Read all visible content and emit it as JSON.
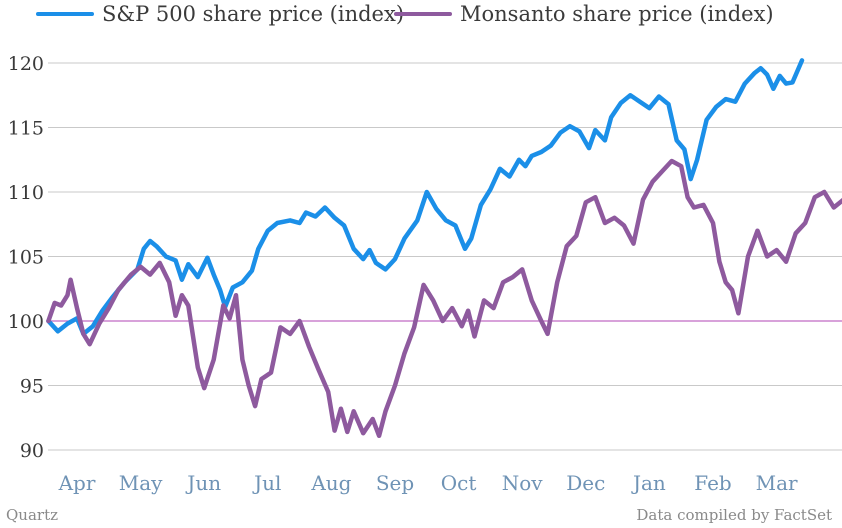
{
  "chart_data": {
    "type": "line",
    "title": "",
    "xlabel": "",
    "ylabel": "",
    "x_categories": [
      "Apr",
      "May",
      "Jun",
      "Jul",
      "Aug",
      "Sep",
      "Oct",
      "Nov",
      "Dec",
      "Jan",
      "Feb",
      "Mar"
    ],
    "yticks": [
      90,
      95,
      100,
      105,
      110,
      115,
      120
    ],
    "ylim": [
      89.5,
      121.5
    ],
    "reference_line": 100,
    "grid": true,
    "legend_position": "top",
    "series": [
      {
        "name": "S&P 500 share price (index)",
        "color": "#1b8fe8",
        "points": [
          [
            0.0,
            100.0
          ],
          [
            0.15,
            99.2
          ],
          [
            0.3,
            99.8
          ],
          [
            0.45,
            100.2
          ],
          [
            0.55,
            99.0
          ],
          [
            0.7,
            99.6
          ],
          [
            0.85,
            100.8
          ],
          [
            1.0,
            101.8
          ],
          [
            1.2,
            103.0
          ],
          [
            1.4,
            104.0
          ],
          [
            1.5,
            105.6
          ],
          [
            1.6,
            106.2
          ],
          [
            1.7,
            105.8
          ],
          [
            1.85,
            105.0
          ],
          [
            2.0,
            104.7
          ],
          [
            2.1,
            103.2
          ],
          [
            2.2,
            104.4
          ],
          [
            2.35,
            103.4
          ],
          [
            2.5,
            104.9
          ],
          [
            2.6,
            103.6
          ],
          [
            2.7,
            102.4
          ],
          [
            2.78,
            101.1
          ],
          [
            2.9,
            102.6
          ],
          [
            3.05,
            103.0
          ],
          [
            3.2,
            103.9
          ],
          [
            3.3,
            105.6
          ],
          [
            3.45,
            107.0
          ],
          [
            3.6,
            107.6
          ],
          [
            3.8,
            107.8
          ],
          [
            3.95,
            107.6
          ],
          [
            4.05,
            108.4
          ],
          [
            4.2,
            108.1
          ],
          [
            4.35,
            108.8
          ],
          [
            4.5,
            108.0
          ],
          [
            4.65,
            107.4
          ],
          [
            4.8,
            105.6
          ],
          [
            4.95,
            104.8
          ],
          [
            5.05,
            105.5
          ],
          [
            5.15,
            104.5
          ],
          [
            5.3,
            104.0
          ],
          [
            5.45,
            104.8
          ],
          [
            5.6,
            106.4
          ],
          [
            5.8,
            107.8
          ],
          [
            5.95,
            110.0
          ],
          [
            6.1,
            108.7
          ],
          [
            6.25,
            107.8
          ],
          [
            6.4,
            107.4
          ],
          [
            6.55,
            105.6
          ],
          [
            6.65,
            106.4
          ],
          [
            6.8,
            109.0
          ],
          [
            6.95,
            110.2
          ],
          [
            7.1,
            111.8
          ],
          [
            7.25,
            111.2
          ],
          [
            7.4,
            112.5
          ],
          [
            7.5,
            112.0
          ],
          [
            7.6,
            112.8
          ],
          [
            7.75,
            113.1
          ],
          [
            7.9,
            113.6
          ],
          [
            8.05,
            114.6
          ],
          [
            8.2,
            115.1
          ],
          [
            8.35,
            114.7
          ],
          [
            8.5,
            113.4
          ],
          [
            8.6,
            114.8
          ],
          [
            8.75,
            114.0
          ],
          [
            8.85,
            115.8
          ],
          [
            9.0,
            116.9
          ],
          [
            9.15,
            117.5
          ],
          [
            9.3,
            117.0
          ],
          [
            9.45,
            116.5
          ],
          [
            9.6,
            117.4
          ],
          [
            9.75,
            116.8
          ],
          [
            9.88,
            114.0
          ],
          [
            10.0,
            113.3
          ],
          [
            10.1,
            111.0
          ],
          [
            10.2,
            112.5
          ],
          [
            10.35,
            115.6
          ],
          [
            10.5,
            116.6
          ],
          [
            10.65,
            117.2
          ],
          [
            10.8,
            117.0
          ],
          [
            10.95,
            118.4
          ],
          [
            11.1,
            119.2
          ],
          [
            11.2,
            119.6
          ],
          [
            11.3,
            119.1
          ],
          [
            11.4,
            118.0
          ],
          [
            11.5,
            119.0
          ],
          [
            11.6,
            118.4
          ],
          [
            11.7,
            118.5
          ],
          [
            11.85,
            120.2
          ]
        ]
      },
      {
        "name": "Monsanto share price (index)",
        "color": "#8e5a9e",
        "points": [
          [
            0.0,
            100.0
          ],
          [
            0.1,
            101.4
          ],
          [
            0.2,
            101.2
          ],
          [
            0.3,
            102.0
          ],
          [
            0.35,
            103.2
          ],
          [
            0.45,
            101.0
          ],
          [
            0.55,
            99.0
          ],
          [
            0.65,
            98.2
          ],
          [
            0.8,
            99.8
          ],
          [
            0.95,
            101.0
          ],
          [
            1.1,
            102.4
          ],
          [
            1.3,
            103.6
          ],
          [
            1.45,
            104.2
          ],
          [
            1.6,
            103.6
          ],
          [
            1.75,
            104.5
          ],
          [
            1.9,
            103.0
          ],
          [
            2.0,
            100.4
          ],
          [
            2.1,
            102.0
          ],
          [
            2.2,
            101.2
          ],
          [
            2.35,
            96.4
          ],
          [
            2.45,
            94.8
          ],
          [
            2.6,
            97.0
          ],
          [
            2.75,
            101.2
          ],
          [
            2.85,
            100.2
          ],
          [
            2.95,
            102.0
          ],
          [
            3.05,
            97.0
          ],
          [
            3.15,
            95.0
          ],
          [
            3.25,
            93.4
          ],
          [
            3.35,
            95.5
          ],
          [
            3.5,
            96.0
          ],
          [
            3.65,
            99.5
          ],
          [
            3.8,
            99.0
          ],
          [
            3.95,
            100.0
          ],
          [
            4.1,
            98.0
          ],
          [
            4.25,
            96.2
          ],
          [
            4.4,
            94.5
          ],
          [
            4.5,
            91.5
          ],
          [
            4.6,
            93.2
          ],
          [
            4.7,
            91.4
          ],
          [
            4.8,
            93.0
          ],
          [
            4.95,
            91.3
          ],
          [
            5.1,
            92.4
          ],
          [
            5.2,
            91.1
          ],
          [
            5.3,
            93.0
          ],
          [
            5.45,
            95.0
          ],
          [
            5.6,
            97.5
          ],
          [
            5.75,
            99.5
          ],
          [
            5.9,
            102.8
          ],
          [
            6.05,
            101.6
          ],
          [
            6.2,
            100.0
          ],
          [
            6.35,
            101.0
          ],
          [
            6.5,
            99.6
          ],
          [
            6.6,
            100.8
          ],
          [
            6.7,
            98.8
          ],
          [
            6.85,
            101.6
          ],
          [
            7.0,
            101.0
          ],
          [
            7.15,
            103.0
          ],
          [
            7.3,
            103.4
          ],
          [
            7.45,
            104.0
          ],
          [
            7.6,
            101.6
          ],
          [
            7.75,
            100.0
          ],
          [
            7.85,
            99.0
          ],
          [
            8.0,
            103.0
          ],
          [
            8.15,
            105.8
          ],
          [
            8.3,
            106.6
          ],
          [
            8.45,
            109.2
          ],
          [
            8.6,
            109.6
          ],
          [
            8.75,
            107.6
          ],
          [
            8.9,
            108.0
          ],
          [
            9.05,
            107.4
          ],
          [
            9.2,
            106.0
          ],
          [
            9.35,
            109.4
          ],
          [
            9.5,
            110.8
          ],
          [
            9.65,
            111.6
          ],
          [
            9.8,
            112.4
          ],
          [
            9.95,
            112.0
          ],
          [
            10.05,
            109.6
          ],
          [
            10.15,
            108.8
          ],
          [
            10.3,
            109.0
          ],
          [
            10.45,
            107.6
          ],
          [
            10.55,
            104.6
          ],
          [
            10.65,
            103.0
          ],
          [
            10.75,
            102.4
          ],
          [
            10.85,
            100.6
          ],
          [
            11.0,
            105.0
          ],
          [
            11.15,
            107.0
          ],
          [
            11.3,
            105.0
          ],
          [
            11.45,
            105.5
          ],
          [
            11.6,
            104.6
          ],
          [
            11.75,
            106.8
          ],
          [
            11.9,
            107.6
          ],
          [
            12.05,
            109.6
          ],
          [
            12.2,
            110.0
          ],
          [
            12.35,
            108.8
          ],
          [
            12.5,
            109.4
          ],
          [
            12.6,
            107.6
          ],
          [
            12.75,
            109.8
          ],
          [
            12.9,
            111.0
          ]
        ]
      }
    ]
  },
  "footer": {
    "source_left": "Quartz",
    "source_right": "Data compiled by FactSet"
  }
}
